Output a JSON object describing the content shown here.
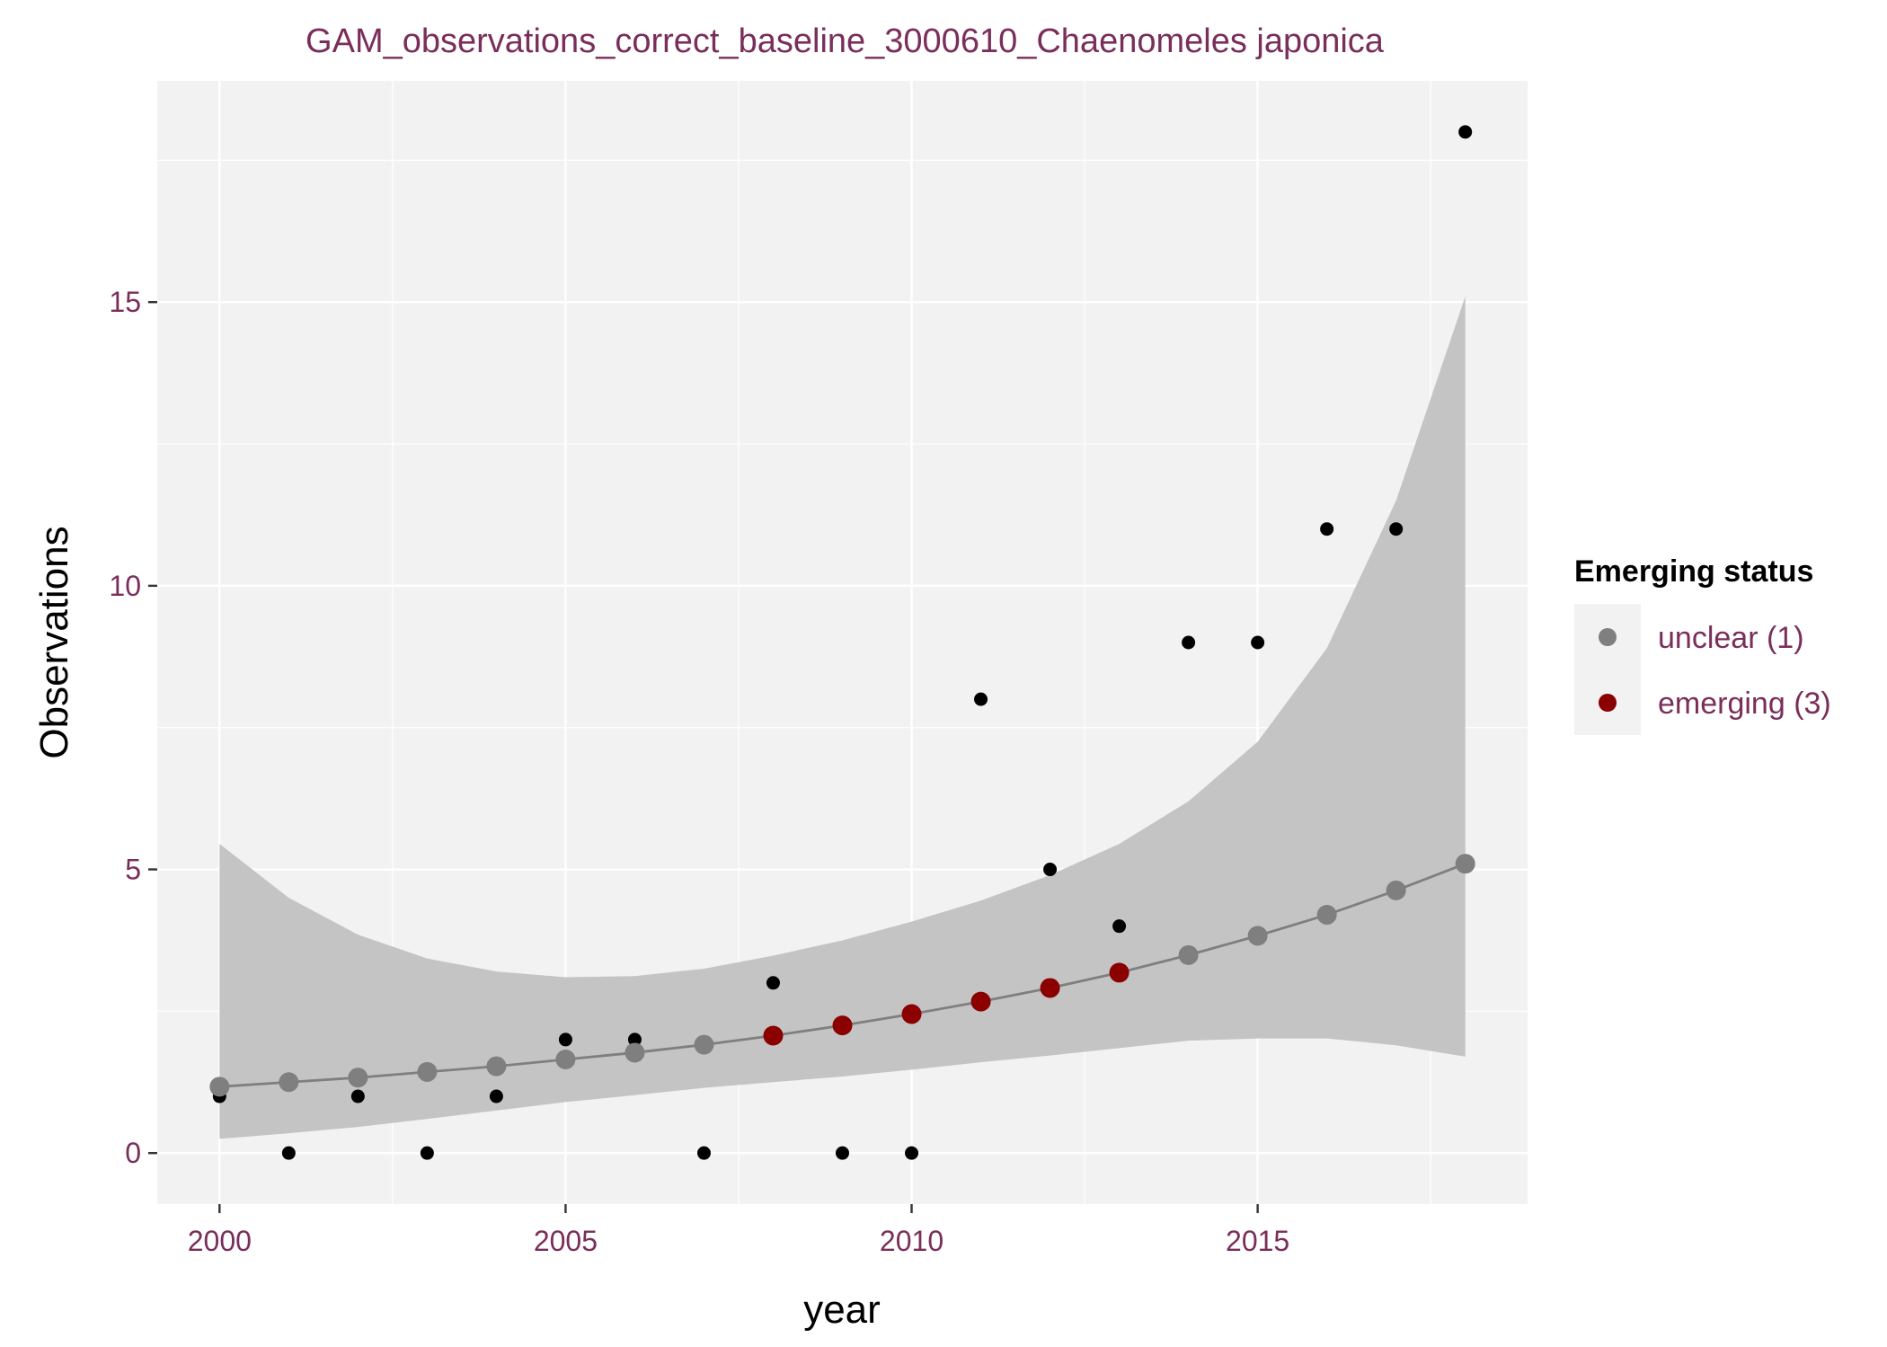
{
  "chart_data": {
    "type": "scatter",
    "title": "GAM_observations_correct_baseline_3000610_Chaenomeles japonica",
    "xlabel": "year",
    "ylabel": "Observations",
    "xlim": [
      1999.1,
      2018.9
    ],
    "ylim": [
      -0.9,
      18.9
    ],
    "x_ticks": [
      2000,
      2005,
      2010,
      2015
    ],
    "x_tick_labels": [
      "2000",
      "2005",
      "2010",
      "2015"
    ],
    "y_ticks": [
      0,
      5,
      10,
      15
    ],
    "y_tick_labels": [
      "0",
      "5",
      "10",
      "15"
    ],
    "grid": true,
    "legend_position": "right",
    "colors": {
      "panel": "#F2F2F2",
      "grid": "#FFFFFF",
      "ribbon": "#C4C4C4",
      "fit_line": "#7F7F7F",
      "observed": "#000000",
      "unclear": "#7F7F7F",
      "emerging": "#8B0000"
    },
    "observed": {
      "x": [
        2000,
        2001,
        2002,
        2003,
        2004,
        2005,
        2006,
        2007,
        2008,
        2009,
        2010,
        2011,
        2012,
        2013,
        2014,
        2015,
        2016,
        2017,
        2018
      ],
      "y": [
        1,
        0,
        1,
        0,
        1,
        2,
        2,
        0,
        3,
        0,
        0,
        8,
        5,
        4,
        9,
        9,
        11,
        11,
        18
      ]
    },
    "fit": {
      "x": [
        2000,
        2001,
        2002,
        2003,
        2004,
        2005,
        2006,
        2007,
        2008,
        2009,
        2010,
        2011,
        2012,
        2013,
        2014,
        2015,
        2016,
        2017,
        2018
      ],
      "y": [
        1.17,
        1.25,
        1.33,
        1.43,
        1.53,
        1.65,
        1.77,
        1.91,
        2.07,
        2.25,
        2.45,
        2.67,
        2.91,
        3.18,
        3.49,
        3.83,
        4.2,
        4.63,
        5.1
      ],
      "lower": [
        0.25,
        0.35,
        0.46,
        0.6,
        0.75,
        0.9,
        1.02,
        1.15,
        1.25,
        1.35,
        1.47,
        1.6,
        1.72,
        1.85,
        1.98,
        2.02,
        2.02,
        1.9,
        1.7
      ],
      "upper": [
        5.45,
        4.5,
        3.85,
        3.43,
        3.2,
        3.1,
        3.12,
        3.25,
        3.48,
        3.75,
        4.08,
        4.45,
        4.9,
        5.45,
        6.2,
        7.25,
        8.9,
        11.5,
        15.1
      ],
      "status": [
        "unclear",
        "unclear",
        "unclear",
        "unclear",
        "unclear",
        "unclear",
        "unclear",
        "unclear",
        "emerging",
        "emerging",
        "emerging",
        "emerging",
        "emerging",
        "emerging",
        "unclear",
        "unclear",
        "unclear",
        "unclear",
        "unclear"
      ]
    },
    "legend": {
      "title": "Emerging status",
      "items": [
        {
          "key": "unclear",
          "label": "unclear (1)",
          "color": "#7F7F7F"
        },
        {
          "key": "emerging",
          "label": "emerging (3)",
          "color": "#8B0000"
        }
      ]
    }
  }
}
